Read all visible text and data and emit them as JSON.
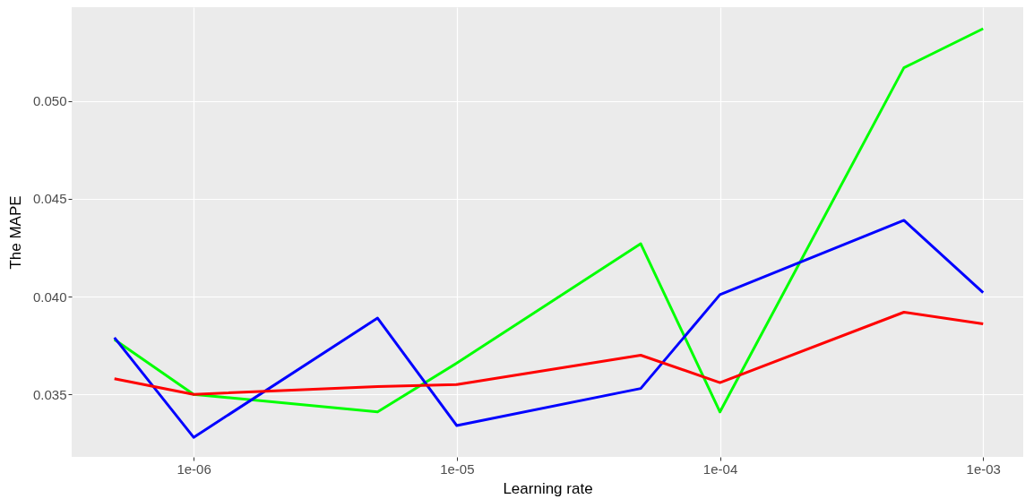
{
  "chart_data": {
    "type": "line",
    "xlabel": "Learning rate",
    "ylabel": "The MAPE",
    "x": [
      5e-07,
      1e-06,
      5e-06,
      1e-05,
      5e-05,
      0.0001,
      0.0005,
      0.001
    ],
    "series": [
      {
        "color": "#00ff00",
        "values": [
          0.0378,
          0.035,
          0.0341,
          0.0366,
          0.0427,
          0.0341,
          0.0517,
          0.0537
        ]
      },
      {
        "color": "#0000ff",
        "values": [
          0.0379,
          0.0328,
          0.0389,
          0.0334,
          0.0353,
          0.0401,
          0.0439,
          0.0402
        ]
      },
      {
        "color": "#ff0000",
        "values": [
          0.0358,
          0.035,
          0.0354,
          0.0355,
          0.037,
          0.0356,
          0.0392,
          0.0386
        ]
      }
    ],
    "log": "x",
    "xlim": [
      3.44e-07,
      0.00142
    ],
    "xticks": [
      {
        "value": 1e-06,
        "label": "1e-06"
      },
      {
        "value": 1e-05,
        "label": "1e-05"
      },
      {
        "value": 0.0001,
        "label": "1e-04"
      },
      {
        "value": 0.001,
        "label": "1e-03"
      }
    ],
    "ylim": [
      0.0318,
      0.0548
    ],
    "yticks": [
      {
        "value": 0.035,
        "label": "0.035"
      },
      {
        "value": 0.04,
        "label": "0.040"
      },
      {
        "value": 0.045,
        "label": "0.045"
      },
      {
        "value": 0.05,
        "label": "0.050"
      }
    ],
    "grid": true,
    "marker": "none",
    "line_style": "solid"
  }
}
